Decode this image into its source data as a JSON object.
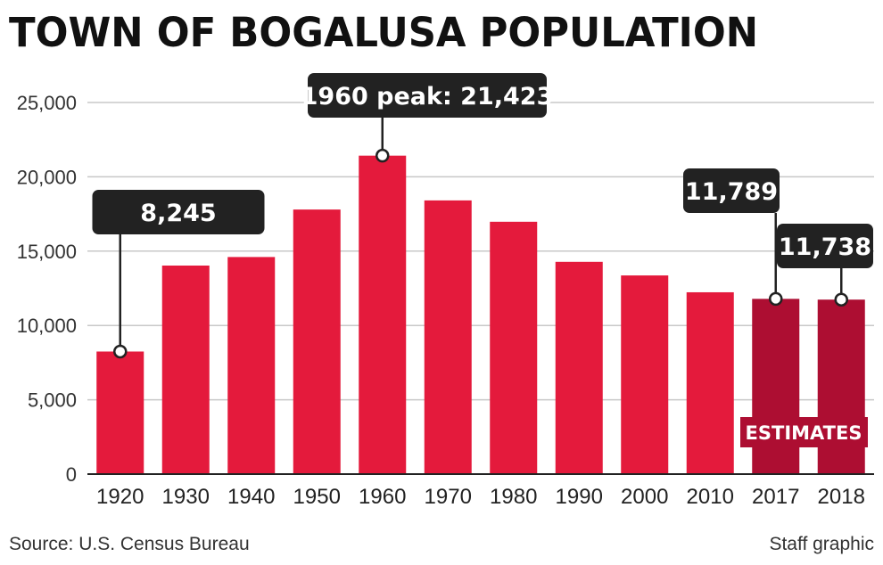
{
  "title": "TOWN OF BOGALUSA POPULATION",
  "source": "Source: U.S. Census Bureau",
  "credit": "Staff graphic",
  "estimates_label": "ESTIMATES",
  "colors": {
    "bar": "#e41a3c",
    "estimate_bar": "#ad0e32",
    "callout": "#222222",
    "grid": "#c8c8c8"
  },
  "chart_data": {
    "type": "bar",
    "title": "TOWN OF BOGALUSA POPULATION",
    "xlabel": "",
    "ylabel": "",
    "ylim": [
      0,
      25000
    ],
    "yticks": [
      0,
      5000,
      10000,
      15000,
      20000,
      25000
    ],
    "ytick_labels": [
      "0",
      "5,000",
      "10,000",
      "15,000",
      "20,000",
      "25,000"
    ],
    "grid": true,
    "categories": [
      "1920",
      "1930",
      "1940",
      "1950",
      "1960",
      "1970",
      "1980",
      "1990",
      "2000",
      "2010",
      "2017",
      "2018"
    ],
    "values": [
      8245,
      14029,
      14604,
      17798,
      21423,
      18412,
      16976,
      14280,
      13365,
      12232,
      11789,
      11738
    ],
    "estimate_categories": [
      "2017",
      "2018"
    ],
    "annotations": [
      {
        "category": "1920",
        "text": "8,245"
      },
      {
        "category": "1960",
        "text": "1960 peak: 21,423"
      },
      {
        "category": "2017",
        "text": "11,789"
      },
      {
        "category": "2018",
        "text": "11,738"
      }
    ]
  }
}
